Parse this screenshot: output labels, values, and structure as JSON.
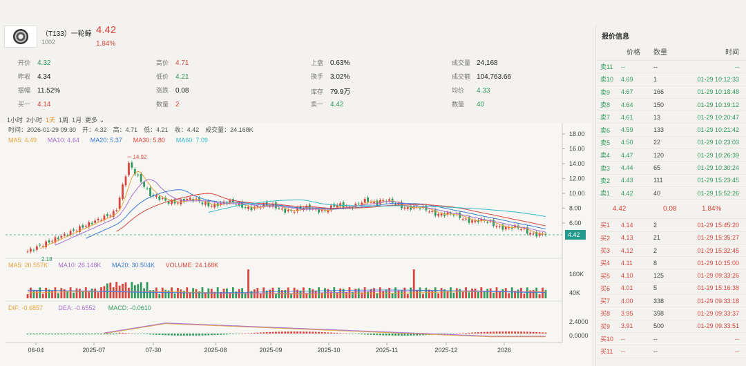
{
  "stock": {
    "name": "（T133）一轮鲸",
    "code": "1002",
    "price": "4.42",
    "change_pct": "1.84%"
  },
  "stats": [
    {
      "k": "开价",
      "v": "4.32",
      "c": "green"
    },
    {
      "k": "高价",
      "v": "4.71",
      "c": "red"
    },
    {
      "k": "上盘",
      "v": "0.63%",
      "c": "dark"
    },
    {
      "k": "成交量",
      "v": "24,168",
      "c": "dark"
    },
    {
      "k": "昨收",
      "v": "4.34",
      "c": "dark"
    },
    {
      "k": "低价",
      "v": "4.21",
      "c": "green"
    },
    {
      "k": "换手",
      "v": "3.02%",
      "c": "dark"
    },
    {
      "k": "成交额",
      "v": "104,763.66",
      "c": "dark"
    },
    {
      "k": "振幅",
      "v": "11.52%",
      "c": "dark"
    },
    {
      "k": "涨跌",
      "v": "0.08",
      "c": "dark"
    },
    {
      "k": "库存",
      "v": "79.9万",
      "c": "dark"
    },
    {
      "k": "均价",
      "v": "4.33",
      "c": "green"
    },
    {
      "k": "买一",
      "v": "4.14",
      "c": "red"
    },
    {
      "k": "数量",
      "v": "2",
      "c": "red"
    },
    {
      "k": "卖一",
      "v": "4.42",
      "c": "green"
    },
    {
      "k": "数量",
      "v": "40",
      "c": "green"
    }
  ],
  "periods": [
    "1小时",
    "2小时",
    "1天",
    "1周",
    "1月",
    "更多 ⌄"
  ],
  "active_period": "1天",
  "chart": {
    "info": "时间：2026-01-29 09:30　开：4.32　高：4.71　低：4.21　收：4.42　成交量：24.168K",
    "ma_labels": [
      {
        "t": "MA5: 4.49",
        "c": "#e8a33d"
      },
      {
        "t": "MA10: 4.64",
        "c": "#a66fd0"
      },
      {
        "t": "MA20: 5.37",
        "c": "#3a7bd5"
      },
      {
        "t": "MA30: 5.80",
        "c": "#d8453f"
      },
      {
        "t": "MA60: 7.09",
        "c": "#34b6c7"
      }
    ],
    "vol_labels": [
      {
        "t": "MA5: 20.557K",
        "c": "#e8a33d"
      },
      {
        "t": "MA10: 26.148K",
        "c": "#a66fd0"
      },
      {
        "t": "MA20: 30.504K",
        "c": "#3a7bd5"
      },
      {
        "t": "VOLUME: 24.168K",
        "c": "#d8453f"
      }
    ],
    "macd_labels": [
      {
        "t": "DIF: -0.6857",
        "c": "#e8a33d"
      },
      {
        "t": "DEA: -0.6552",
        "c": "#a66fd0"
      },
      {
        "t": "MACD: -0.0610",
        "c": "#2f9a5c"
      }
    ],
    "price_ticks": [
      "18.00",
      "16.00",
      "14.00",
      "12.00",
      "10.00",
      "8.00",
      "6.00"
    ],
    "vol_ticks": [
      "160K",
      "40K"
    ],
    "macd_ticks": [
      "2.4000",
      "0.0000"
    ],
    "x_ticks": [
      "06-04",
      "2025-07",
      "07-30",
      "2025-08",
      "2025-09",
      "2025-10",
      "2025-11",
      "2025-12",
      "2026"
    ],
    "high_label": "14.92",
    "low_label": "2.18",
    "last_label": "4.42"
  },
  "chart_data": {
    "type": "candlestick",
    "ylim": [
      2,
      19
    ],
    "current": 4.42,
    "high": 14.92,
    "low": 2.18
  },
  "orderbook": {
    "title": "报价信息",
    "headers": [
      "价格",
      "数量",
      "时间"
    ],
    "asks": [
      {
        "l": "卖11",
        "p": "--",
        "q": "--",
        "t": "--"
      },
      {
        "l": "卖10",
        "p": "4.69",
        "q": "1",
        "t": "01-29 10:12:33"
      },
      {
        "l": "卖9",
        "p": "4.67",
        "q": "166",
        "t": "01-29 10:18:48"
      },
      {
        "l": "卖8",
        "p": "4.64",
        "q": "150",
        "t": "01-29 10:19:12"
      },
      {
        "l": "卖7",
        "p": "4.61",
        "q": "13",
        "t": "01-29 10:20:47"
      },
      {
        "l": "卖6",
        "p": "4.59",
        "q": "133",
        "t": "01-29 10:21:42"
      },
      {
        "l": "卖5",
        "p": "4.50",
        "q": "22",
        "t": "01-29 10:23:03"
      },
      {
        "l": "卖4",
        "p": "4.47",
        "q": "120",
        "t": "01-29 10:26:39"
      },
      {
        "l": "卖3",
        "p": "4.44",
        "q": "65",
        "t": "01-29 10:30:24"
      },
      {
        "l": "卖2",
        "p": "4.43",
        "q": "111",
        "t": "01-29 15:23:45"
      },
      {
        "l": "卖1",
        "p": "4.42",
        "q": "40",
        "t": "01-29 15:52:26"
      }
    ],
    "mid": {
      "price": "4.42",
      "change": "0.08",
      "pct": "1.84%"
    },
    "bids": [
      {
        "l": "买1",
        "p": "4.14",
        "q": "2",
        "t": "01-29 15:45:20"
      },
      {
        "l": "买2",
        "p": "4.13",
        "q": "21",
        "t": "01-29 15:35:27"
      },
      {
        "l": "买3",
        "p": "4.12",
        "q": "2",
        "t": "01-29 15:32:45"
      },
      {
        "l": "买4",
        "p": "4.11",
        "q": "8",
        "t": "01-29 10:15:00"
      },
      {
        "l": "买5",
        "p": "4.10",
        "q": "125",
        "t": "01-29 09:33:26"
      },
      {
        "l": "买6",
        "p": "4.01",
        "q": "5",
        "t": "01-29 15:16:38"
      },
      {
        "l": "买7",
        "p": "4.00",
        "q": "338",
        "t": "01-29 09:33:18"
      },
      {
        "l": "买8",
        "p": "3.95",
        "q": "398",
        "t": "01-29 09:33:37"
      },
      {
        "l": "买9",
        "p": "3.91",
        "q": "500",
        "t": "01-29 09:33:51"
      },
      {
        "l": "买10",
        "p": "--",
        "q": "--",
        "t": "--"
      },
      {
        "l": "买11",
        "p": "--",
        "q": "--",
        "t": "--"
      }
    ]
  },
  "colors": {
    "up": "#d8453f",
    "down": "#2f9a5c",
    "accent": "#e08a1a",
    "tag": "#239a8c"
  }
}
